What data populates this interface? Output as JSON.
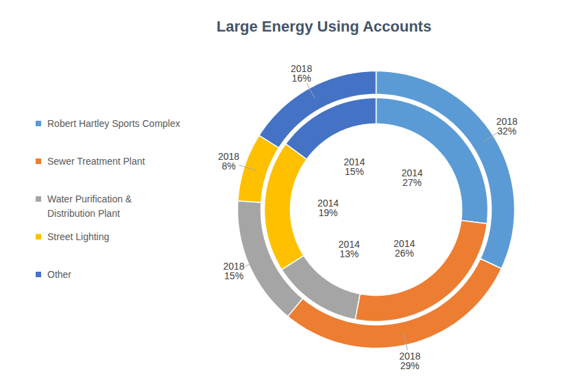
{
  "chart_data": {
    "type": "donut",
    "title": "Large Energy Using Accounts",
    "categories": [
      "Robert Hartley Sports Complex",
      "Sewer Treatment Plant",
      "Water Purification & Distribution Plant",
      "Street Lighting",
      "Other"
    ],
    "colors": [
      "#5b9bd5",
      "#ed7d31",
      "#a5a5a5",
      "#ffc000",
      "#4472c4"
    ],
    "series": [
      {
        "name": "2014",
        "values": [
          27,
          26,
          13,
          19,
          15
        ],
        "value_labels": [
          "27%",
          "26%",
          "13%",
          "19%",
          "15%"
        ]
      },
      {
        "name": "2018",
        "values": [
          32,
          29,
          15,
          8,
          16
        ],
        "value_labels": [
          "32%",
          "29%",
          "15%",
          "8%",
          "16%"
        ]
      }
    ],
    "data_labels": true,
    "legend": "left"
  }
}
